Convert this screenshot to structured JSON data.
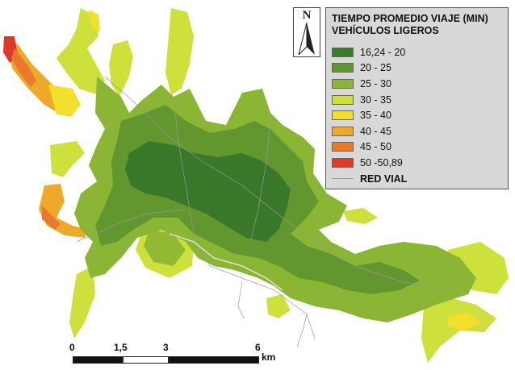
{
  "legend": {
    "title_line1": "TIEMPO PROMEDIO VIAJE (MIN)",
    "title_line2": "VEHÍCULOS LIGEROS",
    "classes": [
      {
        "label": "16,24 - 20",
        "color": "#3b7a2a"
      },
      {
        "label": "20 - 25",
        "color": "#62962f"
      },
      {
        "label": "25 - 30",
        "color": "#8bb534"
      },
      {
        "label": "30 - 35",
        "color": "#cde03b"
      },
      {
        "label": "35 - 40",
        "color": "#f4e02c"
      },
      {
        "label": "40 - 45",
        "color": "#eea82a"
      },
      {
        "label": "45 - 50",
        "color": "#e8792d"
      },
      {
        "label": "50 -50,89",
        "color": "#e0382a"
      }
    ],
    "road_label": "RED VIAL",
    "road_color": "#999999"
  },
  "north_arrow": {
    "letter": "N"
  },
  "scale_bar": {
    "ticks": [
      "0",
      "1,5",
      "3",
      "6"
    ],
    "unit": "km"
  }
}
